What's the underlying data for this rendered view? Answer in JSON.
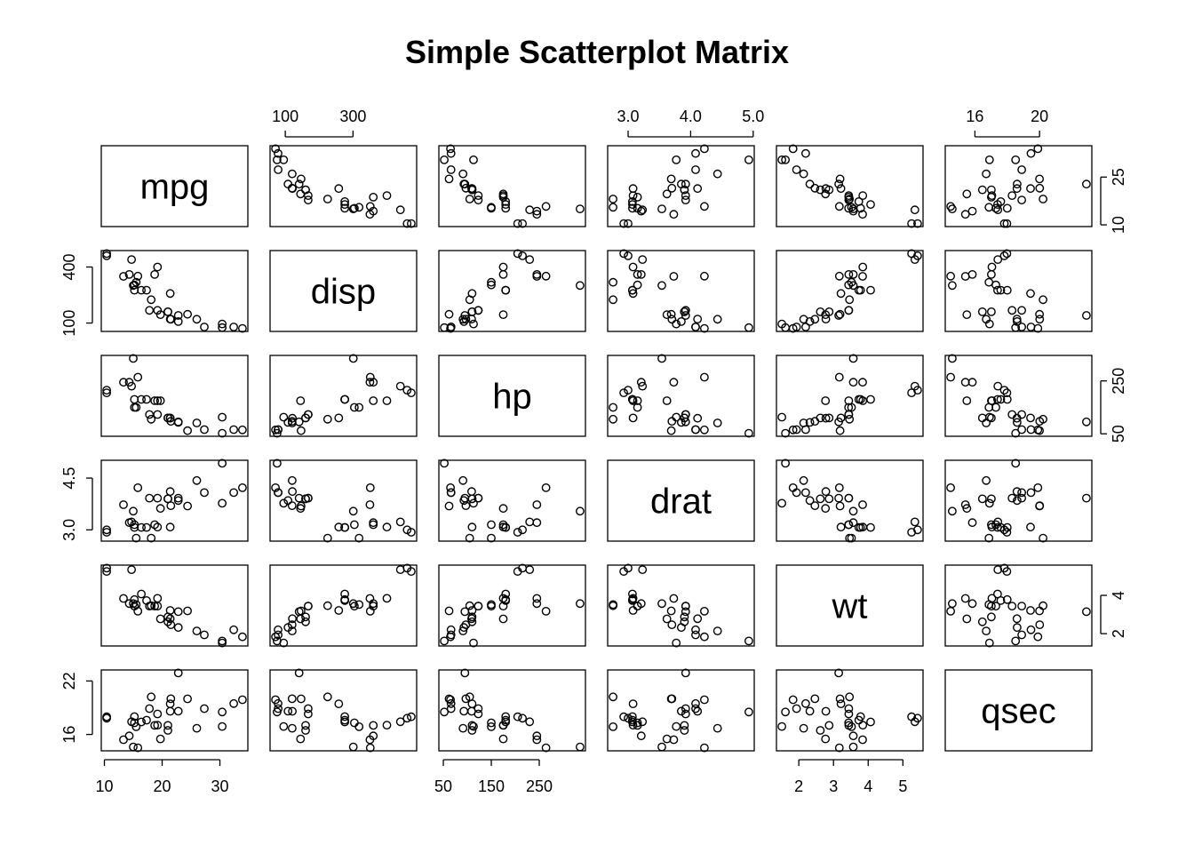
{
  "chart_data": {
    "type": "scatter",
    "title": "Simple Scatterplot Matrix",
    "variables": [
      "mpg",
      "disp",
      "hp",
      "drat",
      "wt",
      "qsec"
    ],
    "axis_ticks": {
      "mpg": [
        10,
        20,
        30
      ],
      "disp": [
        100,
        300
      ],
      "hp": [
        50,
        150,
        250
      ],
      "drat": [
        3.0,
        4.0,
        5.0
      ],
      "wt": [
        2,
        3,
        4,
        5
      ],
      "qsec": [
        16,
        20
      ]
    },
    "axis_tick_labels": {
      "mpg": [
        "10",
        "20",
        "30"
      ],
      "disp": [
        "100",
        "300"
      ],
      "hp": [
        "50",
        "150",
        "250"
      ],
      "drat": [
        "3.0",
        "4.0",
        "5.0"
      ],
      "wt": [
        "2",
        "3",
        "4",
        "5"
      ],
      "qsec": [
        "16",
        "20"
      ]
    },
    "left_axis_ticks": {
      "disp": [
        100,
        400
      ],
      "hp": [
        50,
        250
      ],
      "drat": [
        3.0,
        4.5
      ],
      "qsec": [
        16,
        22
      ]
    },
    "left_axis_tick_labels": {
      "disp": [
        "100",
        "400"
      ],
      "hp": [
        "50",
        "250"
      ],
      "drat": [
        "3.0",
        "4.5"
      ],
      "qsec": [
        "16",
        "22"
      ]
    },
    "right_axis_ticks": {
      "mpg": [
        10,
        25
      ],
      "hp": [
        50,
        250
      ],
      "wt": [
        2,
        4
      ]
    },
    "right_axis_tick_labels": {
      "mpg": [
        "10",
        "25"
      ],
      "hp": [
        "50",
        "250"
      ],
      "wt": [
        "2",
        "4"
      ]
    },
    "ranges": {
      "mpg": [
        10.4,
        33.9
      ],
      "disp": [
        71.1,
        472
      ],
      "hp": [
        52,
        335
      ],
      "drat": [
        2.76,
        4.93
      ],
      "wt": [
        1.513,
        5.424
      ],
      "qsec": [
        14.5,
        22.9
      ]
    },
    "data": {
      "mpg": [
        21.0,
        21.0,
        22.8,
        21.4,
        18.7,
        18.1,
        14.3,
        24.4,
        22.8,
        19.2,
        17.8,
        16.4,
        17.3,
        15.2,
        10.4,
        10.4,
        14.7,
        32.4,
        30.4,
        33.9,
        21.5,
        15.5,
        15.2,
        13.3,
        19.2,
        27.3,
        26.0,
        30.4,
        15.8,
        19.7,
        15.0,
        21.4
      ],
      "disp": [
        160,
        160,
        108,
        258,
        360,
        225,
        360,
        146.7,
        140.8,
        167.6,
        167.6,
        275.8,
        275.8,
        275.8,
        472,
        460,
        440,
        78.7,
        75.7,
        71.1,
        120.1,
        318,
        304,
        350,
        400,
        79,
        120.3,
        95.1,
        351,
        145,
        301,
        121
      ],
      "hp": [
        110,
        110,
        93,
        110,
        175,
        105,
        245,
        62,
        95,
        123,
        123,
        180,
        180,
        180,
        205,
        215,
        230,
        66,
        52,
        65,
        97,
        150,
        150,
        245,
        175,
        66,
        91,
        113,
        264,
        175,
        335,
        109
      ],
      "drat": [
        3.9,
        3.9,
        3.85,
        3.08,
        3.15,
        2.76,
        3.21,
        3.69,
        3.92,
        3.92,
        3.92,
        3.07,
        3.07,
        3.07,
        2.93,
        3.0,
        3.23,
        4.08,
        4.93,
        4.22,
        3.7,
        2.76,
        3.15,
        3.73,
        3.08,
        4.08,
        4.43,
        3.77,
        4.22,
        3.62,
        3.54,
        4.11
      ],
      "wt": [
        2.62,
        2.875,
        2.32,
        3.215,
        3.44,
        3.46,
        3.57,
        3.19,
        3.15,
        3.44,
        3.44,
        4.07,
        3.73,
        3.78,
        5.25,
        5.424,
        5.345,
        2.2,
        1.615,
        1.835,
        2.465,
        3.52,
        3.435,
        3.84,
        3.845,
        1.935,
        2.14,
        1.513,
        3.17,
        2.77,
        3.57,
        2.78
      ],
      "qsec": [
        16.46,
        17.02,
        18.61,
        19.44,
        17.02,
        20.22,
        15.84,
        20.0,
        22.9,
        18.3,
        18.9,
        17.4,
        17.6,
        18.0,
        17.98,
        17.82,
        17.42,
        19.47,
        18.52,
        19.9,
        20.01,
        16.87,
        17.3,
        15.41,
        17.05,
        18.9,
        16.7,
        16.9,
        14.5,
        15.5,
        14.6,
        18.6
      ]
    },
    "grid": false,
    "legend": "none"
  }
}
